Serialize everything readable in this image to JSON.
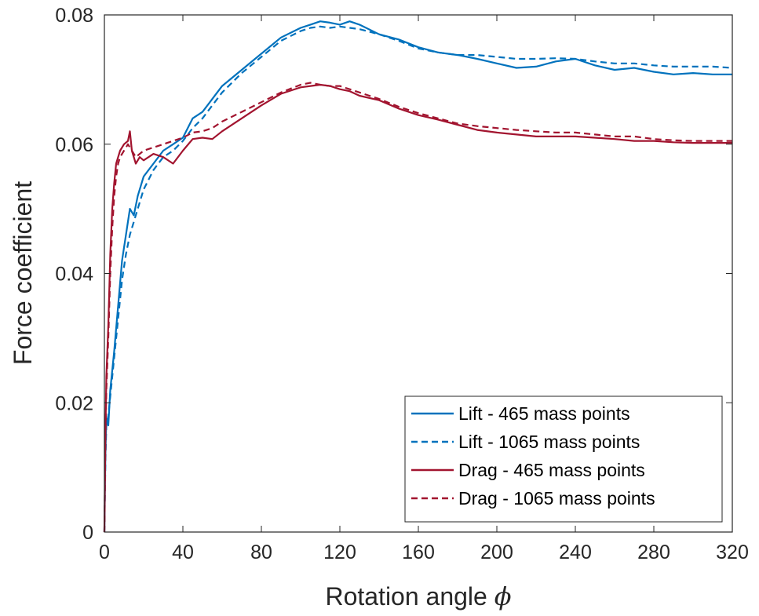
{
  "chart_data": {
    "type": "line",
    "xlabel": "Rotation angle",
    "xlabel_symbol": "ϕ",
    "ylabel": "Force coefficient",
    "xlim": [
      0,
      320
    ],
    "ylim": [
      0,
      0.08
    ],
    "xticks": [
      "0",
      "40",
      "80",
      "120",
      "160",
      "200",
      "240",
      "280",
      "320"
    ],
    "yticks": [
      "0",
      "0.02",
      "0.04",
      "0.06",
      "0.08"
    ],
    "grid": false,
    "legend_position": "bottom-right",
    "series": [
      {
        "name": "Lift - 465 mass points",
        "color": "#0072BD",
        "style": "solid",
        "x": [
          0,
          0.5,
          1,
          2,
          3,
          5,
          7,
          9,
          11,
          13,
          15,
          17,
          20,
          25,
          30,
          35,
          40,
          45,
          50,
          55,
          60,
          70,
          80,
          90,
          100,
          105,
          110,
          115,
          120,
          125,
          130,
          140,
          150,
          160,
          170,
          180,
          190,
          200,
          210,
          220,
          230,
          240,
          250,
          260,
          270,
          280,
          290,
          300,
          310,
          320
        ],
        "values": [
          0,
          0.012,
          0.0175,
          0.0165,
          0.022,
          0.028,
          0.035,
          0.042,
          0.046,
          0.05,
          0.049,
          0.052,
          0.055,
          0.057,
          0.059,
          0.06,
          0.061,
          0.064,
          0.065,
          0.067,
          0.069,
          0.0715,
          0.074,
          0.0765,
          0.078,
          0.0785,
          0.079,
          0.0788,
          0.0785,
          0.079,
          0.0785,
          0.077,
          0.0762,
          0.075,
          0.0742,
          0.0738,
          0.0732,
          0.0725,
          0.0718,
          0.072,
          0.0728,
          0.0732,
          0.0722,
          0.0715,
          0.0718,
          0.0712,
          0.0708,
          0.071,
          0.0708,
          0.0708
        ]
      },
      {
        "name": "Lift - 1065 mass points",
        "color": "#0072BD",
        "style": "dashed",
        "x": [
          0,
          0.5,
          1,
          2,
          3,
          5,
          7,
          9,
          11,
          13,
          15,
          17,
          20,
          25,
          30,
          35,
          40,
          45,
          50,
          55,
          60,
          70,
          80,
          90,
          100,
          105,
          110,
          115,
          120,
          125,
          130,
          140,
          150,
          160,
          170,
          180,
          190,
          200,
          210,
          220,
          230,
          240,
          250,
          260,
          270,
          280,
          290,
          300,
          310,
          320
        ],
        "values": [
          0,
          0.011,
          0.0165,
          0.018,
          0.021,
          0.027,
          0.033,
          0.039,
          0.043,
          0.046,
          0.048,
          0.05,
          0.053,
          0.056,
          0.058,
          0.059,
          0.0605,
          0.0625,
          0.064,
          0.066,
          0.068,
          0.071,
          0.0735,
          0.076,
          0.0775,
          0.078,
          0.0782,
          0.078,
          0.0782,
          0.078,
          0.0778,
          0.077,
          0.076,
          0.0748,
          0.0742,
          0.0738,
          0.0738,
          0.0735,
          0.0732,
          0.0732,
          0.0733,
          0.0732,
          0.0728,
          0.0725,
          0.0725,
          0.0722,
          0.072,
          0.072,
          0.072,
          0.0718
        ]
      },
      {
        "name": "Drag - 465 mass points",
        "color": "#A2142F",
        "style": "solid",
        "x": [
          0,
          0.5,
          1,
          2,
          3,
          4,
          5,
          6,
          7,
          8,
          10,
          12,
          13,
          14,
          16,
          18,
          20,
          25,
          30,
          35,
          40,
          45,
          50,
          55,
          60,
          70,
          80,
          90,
          100,
          105,
          110,
          115,
          120,
          125,
          130,
          140,
          150,
          160,
          170,
          180,
          190,
          200,
          210,
          220,
          230,
          240,
          250,
          260,
          270,
          280,
          290,
          300,
          310,
          320
        ],
        "values": [
          0,
          0.015,
          0.024,
          0.032,
          0.043,
          0.05,
          0.054,
          0.057,
          0.058,
          0.059,
          0.06,
          0.0605,
          0.062,
          0.059,
          0.057,
          0.058,
          0.0575,
          0.0585,
          0.058,
          0.057,
          0.059,
          0.0608,
          0.061,
          0.0608,
          0.062,
          0.064,
          0.066,
          0.0678,
          0.0688,
          0.069,
          0.0692,
          0.069,
          0.0685,
          0.0682,
          0.0675,
          0.0668,
          0.0655,
          0.0645,
          0.0638,
          0.063,
          0.0622,
          0.0618,
          0.0615,
          0.0612,
          0.0612,
          0.0612,
          0.061,
          0.0608,
          0.0605,
          0.0605,
          0.0603,
          0.0602,
          0.0602,
          0.0602
        ]
      },
      {
        "name": "Drag - 1065 mass points",
        "color": "#A2142F",
        "style": "dashed",
        "x": [
          0,
          0.5,
          1,
          2,
          3,
          4,
          5,
          6,
          7,
          8,
          10,
          12,
          14,
          16,
          18,
          20,
          25,
          30,
          35,
          40,
          45,
          50,
          55,
          60,
          70,
          80,
          90,
          100,
          105,
          110,
          115,
          120,
          125,
          130,
          140,
          150,
          160,
          170,
          180,
          190,
          200,
          210,
          220,
          230,
          240,
          250,
          260,
          270,
          280,
          290,
          300,
          310,
          320
        ],
        "values": [
          0,
          0.014,
          0.022,
          0.03,
          0.04,
          0.047,
          0.052,
          0.055,
          0.057,
          0.058,
          0.059,
          0.06,
          0.059,
          0.058,
          0.0585,
          0.059,
          0.0595,
          0.06,
          0.0605,
          0.061,
          0.0618,
          0.062,
          0.0625,
          0.0635,
          0.065,
          0.0665,
          0.068,
          0.0692,
          0.0695,
          0.0692,
          0.069,
          0.069,
          0.0685,
          0.068,
          0.067,
          0.0658,
          0.0648,
          0.064,
          0.0632,
          0.0628,
          0.0625,
          0.0622,
          0.062,
          0.0618,
          0.0618,
          0.0615,
          0.0612,
          0.0612,
          0.0608,
          0.0606,
          0.0605,
          0.0605,
          0.0605
        ]
      }
    ]
  }
}
